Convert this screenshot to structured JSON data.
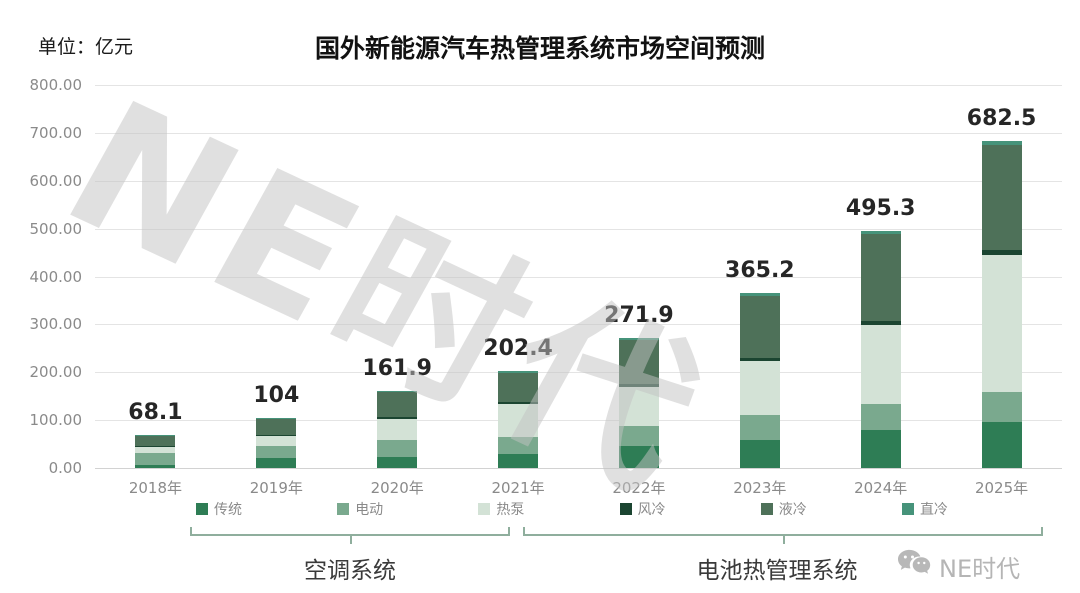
{
  "chart_data": {
    "type": "bar",
    "stacked": true,
    "title": "国外新能源汽车热管理系统市场空间预测",
    "unit_label": "单位：亿元",
    "categories": [
      "2018年",
      "2019年",
      "2020年",
      "2021年",
      "2022年",
      "2023年",
      "2024年",
      "2025年"
    ],
    "totals": [
      68.1,
      104,
      161.9,
      202.4,
      271.9,
      365.2,
      495.3,
      682.5
    ],
    "total_labels": [
      "68.1",
      "104",
      "161.9",
      "202.4",
      "271.9",
      "365.2",
      "495.3",
      "682.5"
    ],
    "series": [
      {
        "name": "传统",
        "group": "空调系统",
        "color": "#2e7d55",
        "values": [
          7,
          20,
          22,
          29,
          45,
          59,
          80,
          97
        ]
      },
      {
        "name": "电动",
        "group": "空调系统",
        "color": "#7aa98e",
        "values": [
          25,
          26,
          36,
          35,
          42,
          52,
          54,
          62
        ]
      },
      {
        "name": "热泵",
        "group": "空调系统",
        "color": "#d3e2d6",
        "values": [
          12,
          20,
          44,
          70,
          83,
          113,
          165,
          285
        ]
      },
      {
        "name": "风冷",
        "group": "电池热管理系统",
        "color": "#1b4531",
        "values": [
          2,
          3,
          4,
          4,
          5,
          6,
          8,
          11
        ]
      },
      {
        "name": "液冷",
        "group": "电池热管理系统",
        "color": "#4e7159",
        "values": [
          21,
          33,
          52,
          61,
          92,
          130,
          182,
          220
        ]
      },
      {
        "name": "直冷",
        "group": "电池热管理系统",
        "color": "#46937a",
        "values": [
          1.1,
          2,
          3.9,
          3.4,
          4.9,
          5.2,
          6.3,
          7.5
        ]
      }
    ],
    "ylim": [
      0,
      800
    ],
    "ytick_step": 100,
    "ytick_labels": [
      "800.00",
      "700.00",
      "600.00",
      "500.00",
      "400.00",
      "300.00",
      "200.00",
      "100.00",
      "0.00"
    ],
    "grid": true,
    "grid_color": "#e4e4e4",
    "legend_position": "bottom",
    "bracket_color": "#8fae9d"
  },
  "groups": {
    "left": {
      "label": "空调系统"
    },
    "right": {
      "label": "电池热管理系统"
    }
  },
  "watermark": {
    "text": "NE时代"
  },
  "logo": {
    "text": "NE时代",
    "icon": "wechat-icon"
  }
}
